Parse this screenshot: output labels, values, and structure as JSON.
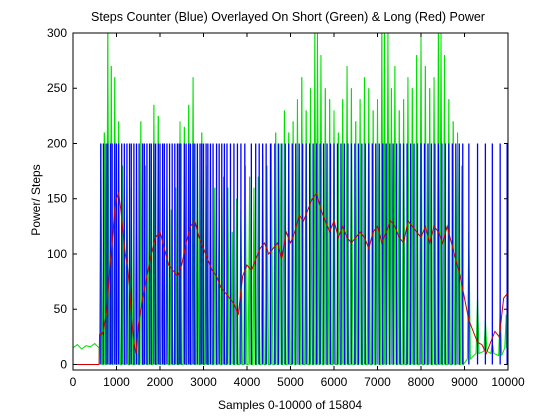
{
  "chart_data": {
    "type": "line",
    "title": "Steps Counter (Blue) Overlayed On Short (Green) & Long (Red) Power",
    "xlabel": "Samples 0-10000 of 15804",
    "ylabel": "Power/ Steps",
    "xlim": [
      0,
      10000
    ],
    "ylim": [
      -5,
      300
    ],
    "xticks": [
      0,
      1000,
      2000,
      3000,
      4000,
      5000,
      6000,
      7000,
      8000,
      9000,
      10000
    ],
    "yticks": [
      0,
      50,
      100,
      150,
      200,
      250,
      300
    ],
    "grid": false,
    "series": [
      {
        "name": "Steps Counter",
        "color": "#0000ff",
        "kind": "impulse",
        "baseline": 0,
        "height": 200,
        "x": [
          640,
          700,
          760,
          800,
          860,
          900,
          960,
          1000,
          1050,
          1120,
          1180,
          1240,
          1300,
          1340,
          1400,
          1460,
          1520,
          1600,
          1640,
          1700,
          1760,
          1800,
          1860,
          1900,
          1960,
          2000,
          2060,
          2100,
          2160,
          2220,
          2280,
          2340,
          2400,
          2440,
          2480,
          2560,
          2600,
          2660,
          2700,
          2760,
          2800,
          2860,
          2920,
          2960,
          3000,
          3060,
          3100,
          3160,
          3220,
          3300,
          3360,
          3420,
          3480,
          3540,
          3620,
          3700,
          3780,
          3860,
          3950,
          4100,
          4200,
          4280,
          4360,
          4440,
          4540,
          4640,
          4720,
          4800,
          4880,
          4960,
          5040,
          5120,
          5200,
          5280,
          5360,
          5440,
          5520,
          5600,
          5680,
          5760,
          5840,
          5920,
          6000,
          6080,
          6160,
          6240,
          6320,
          6400,
          6480,
          6560,
          6640,
          6720,
          6800,
          6880,
          6960,
          7040,
          7120,
          7200,
          7280,
          7360,
          7440,
          7520,
          7600,
          7680,
          7760,
          7840,
          7920,
          8000,
          8080,
          8160,
          8240,
          8320,
          8400,
          8480,
          8560,
          8640,
          8720,
          8800,
          8880,
          8960,
          9100,
          9300,
          9480,
          9640,
          9820,
          9980
        ]
      },
      {
        "name": "Short Power",
        "color": "#00e000",
        "kind": "spiky",
        "pre_x": [
          0,
          100,
          200,
          300,
          400,
          500,
          600
        ],
        "pre_y": [
          15,
          18,
          14,
          17,
          16,
          19,
          15
        ],
        "x": [
          640,
          720,
          800,
          880,
          960,
          1050,
          1140,
          1240,
          1340,
          1460,
          1560,
          1660,
          1760,
          1860,
          1960,
          2060,
          2160,
          2260,
          2360,
          2460,
          2560,
          2660,
          2760,
          2860,
          2960,
          3060,
          3160,
          3260,
          3360,
          3460,
          3560,
          3660,
          3760,
          3860,
          3960,
          4060,
          4160,
          4260,
          4360,
          4460,
          4560,
          4660,
          4760,
          4860,
          4960,
          5060,
          5160,
          5260,
          5360,
          5460,
          5560,
          5620,
          5700,
          5800,
          5900,
          6000,
          6100,
          6200,
          6300,
          6400,
          6500,
          6600,
          6700,
          6800,
          6900,
          7000,
          7100,
          7160,
          7240,
          7320,
          7400,
          7500,
          7600,
          7700,
          7800,
          7900,
          8000,
          8100,
          8200,
          8300,
          8400,
          8460,
          8540,
          8640,
          8740,
          8840,
          8940,
          9100,
          9300,
          9480,
          9640,
          9820,
          9960
        ],
        "peaks": [
          200,
          210,
          300,
          270,
          260,
          220,
          180,
          170,
          160,
          190,
          220,
          180,
          200,
          235,
          225,
          160,
          170,
          140,
          160,
          220,
          215,
          235,
          260,
          200,
          210,
          180,
          190,
          160,
          150,
          170,
          160,
          120,
          150,
          140,
          180,
          170,
          160,
          170,
          190,
          180,
          200,
          210,
          200,
          230,
          210,
          220,
          240,
          260,
          230,
          250,
          300,
          300,
          280,
          250,
          240,
          230,
          210,
          240,
          270,
          250,
          220,
          240,
          260,
          250,
          230,
          240,
          300,
          300,
          300,
          250,
          270,
          230,
          240,
          260,
          250,
          280,
          300,
          270,
          250,
          260,
          300,
          300,
          280,
          240,
          220,
          210,
          180,
          120,
          60,
          40,
          20,
          50,
          45
        ],
        "mins": [
          0,
          0,
          0,
          0,
          0,
          0,
          0,
          0,
          0,
          0,
          0,
          0,
          0,
          0,
          0,
          0,
          0,
          0,
          0,
          0,
          0,
          0,
          0,
          0,
          0,
          0,
          0,
          0,
          0,
          0,
          0,
          0,
          0,
          0,
          0,
          0,
          0,
          0,
          0,
          0,
          0,
          0,
          0,
          0,
          0,
          0,
          0,
          0,
          0,
          0,
          0,
          0,
          0,
          0,
          0,
          0,
          0,
          0,
          0,
          0,
          0,
          0,
          0,
          0,
          0,
          0,
          0,
          0,
          0,
          0,
          0,
          0,
          0,
          0,
          0,
          0,
          0,
          0,
          0,
          0,
          0,
          0,
          0,
          0,
          0,
          0,
          0,
          5,
          10,
          12,
          10,
          8,
          15
        ]
      },
      {
        "name": "Long Power",
        "color": "#cc0000",
        "kind": "line",
        "x": [
          0,
          600,
          610,
          650,
          700,
          780,
          850,
          900,
          960,
          1000,
          1050,
          1100,
          1150,
          1200,
          1250,
          1300,
          1350,
          1400,
          1450,
          1500,
          1600,
          1700,
          1800,
          1900,
          2000,
          2100,
          2200,
          2300,
          2400,
          2500,
          2600,
          2700,
          2800,
          2900,
          3000,
          3100,
          3200,
          3300,
          3400,
          3500,
          3600,
          3700,
          3800,
          3900,
          4000,
          4100,
          4200,
          4300,
          4400,
          4500,
          4600,
          4700,
          4800,
          4900,
          5000,
          5100,
          5200,
          5300,
          5400,
          5500,
          5600,
          5700,
          5800,
          5900,
          6000,
          6100,
          6200,
          6300,
          6400,
          6500,
          6600,
          6700,
          6800,
          6900,
          7000,
          7100,
          7200,
          7300,
          7400,
          7500,
          7600,
          7700,
          7800,
          7900,
          8000,
          8100,
          8200,
          8300,
          8400,
          8500,
          8600,
          8700,
          8800,
          8900,
          9000,
          9100,
          9200,
          9300,
          9400,
          9500,
          9600,
          9700,
          9800,
          9900,
          10000
        ],
        "y": [
          0,
          0,
          27,
          27,
          30,
          50,
          90,
          110,
          140,
          150,
          155,
          140,
          120,
          100,
          90,
          70,
          40,
          20,
          10,
          35,
          60,
          80,
          100,
          115,
          120,
          105,
          90,
          85,
          80,
          90,
          110,
          125,
          130,
          115,
          105,
          95,
          85,
          80,
          70,
          65,
          60,
          55,
          45,
          80,
          90,
          85,
          95,
          105,
          110,
          100,
          105,
          110,
          95,
          120,
          110,
          120,
          135,
          130,
          140,
          150,
          155,
          140,
          130,
          120,
          130,
          115,
          125,
          115,
          110,
          115,
          120,
          115,
          105,
          120,
          125,
          110,
          120,
          130,
          125,
          115,
          110,
          130,
          125,
          120,
          115,
          125,
          110,
          125,
          120,
          110,
          125,
          110,
          95,
          80,
          60,
          40,
          30,
          20,
          18,
          10,
          20,
          30,
          25,
          60,
          65
        ]
      }
    ]
  }
}
